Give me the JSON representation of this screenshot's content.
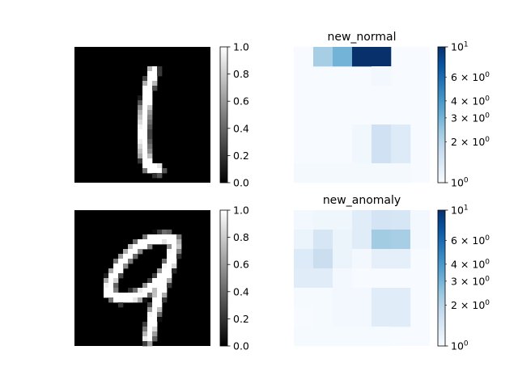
{
  "chart_data": [
    {
      "type": "heatmap",
      "title": "",
      "grid_size": 28,
      "colormap": "gray",
      "digit": "1",
      "colorbar": {
        "vmin": 0.0,
        "vmax": 1.0,
        "ticks": [
          "0.0",
          "0.2",
          "0.4",
          "0.6",
          "0.8",
          "1.0"
        ]
      }
    },
    {
      "type": "heatmap",
      "title": "new_normal",
      "grid_size": 7,
      "colormap": "Blues",
      "scale": "log",
      "colorbar": {
        "vmin": 1,
        "vmax": 10,
        "major_ticks": [
          {
            "base": "10",
            "exp": "0"
          },
          {
            "base": "10",
            "exp": "1"
          }
        ],
        "minor_ticks": [
          {
            "coef": "2",
            "exp": "0"
          },
          {
            "coef": "3",
            "exp": "0"
          },
          {
            "coef": "4",
            "exp": "0"
          },
          {
            "coef": "6",
            "exp": "0"
          }
        ]
      },
      "cells": [
        {
          "row": 0,
          "col": 1,
          "value": 2.2
        },
        {
          "row": 0,
          "col": 2,
          "value": 3.0
        },
        {
          "row": 0,
          "col": 3,
          "value": 10.0
        },
        {
          "row": 0,
          "col": 4,
          "value": 10.0
        },
        {
          "row": 1,
          "col": 4,
          "value": 1.06
        },
        {
          "row": 4,
          "col": 3,
          "value": 1.08
        },
        {
          "row": 4,
          "col": 4,
          "value": 1.6
        },
        {
          "row": 4,
          "col": 5,
          "value": 1.35
        },
        {
          "row": 5,
          "col": 3,
          "value": 1.08
        },
        {
          "row": 5,
          "col": 4,
          "value": 1.6
        },
        {
          "row": 5,
          "col": 5,
          "value": 1.35
        },
        {
          "row": 6,
          "col": 0,
          "value": 1.03
        },
        {
          "row": 6,
          "col": 1,
          "value": 1.03
        },
        {
          "row": 6,
          "col": 2,
          "value": 1.03
        },
        {
          "row": 6,
          "col": 3,
          "value": 1.03
        },
        {
          "row": 6,
          "col": 4,
          "value": 1.03
        },
        {
          "row": 6,
          "col": 5,
          "value": 1.03
        }
      ]
    },
    {
      "type": "heatmap",
      "title": "",
      "grid_size": 28,
      "colormap": "gray",
      "digit": "9",
      "colorbar": {
        "vmin": 0.0,
        "vmax": 1.0,
        "ticks": [
          "0.0",
          "0.2",
          "0.4",
          "0.6",
          "0.8",
          "1.0"
        ]
      }
    },
    {
      "type": "heatmap",
      "title": "new_anomaly",
      "grid_size": 7,
      "colormap": "Blues",
      "scale": "log",
      "colorbar": {
        "vmin": 1,
        "vmax": 10,
        "major_ticks": [
          {
            "base": "10",
            "exp": "0"
          },
          {
            "base": "10",
            "exp": "1"
          }
        ],
        "minor_ticks": [
          {
            "coef": "2",
            "exp": "0"
          },
          {
            "coef": "3",
            "exp": "0"
          },
          {
            "coef": "4",
            "exp": "0"
          },
          {
            "coef": "6",
            "exp": "0"
          }
        ]
      },
      "cells": [
        {
          "row": 0,
          "col": 0,
          "value": 1.05
        },
        {
          "row": 0,
          "col": 1,
          "value": 1.1
        },
        {
          "row": 0,
          "col": 2,
          "value": 1.1
        },
        {
          "row": 0,
          "col": 3,
          "value": 1.3
        },
        {
          "row": 0,
          "col": 4,
          "value": 1.5
        },
        {
          "row": 0,
          "col": 5,
          "value": 1.45
        },
        {
          "row": 0,
          "col": 6,
          "value": 1.05
        },
        {
          "row": 1,
          "col": 0,
          "value": 1.15
        },
        {
          "row": 1,
          "col": 1,
          "value": 1.45
        },
        {
          "row": 1,
          "col": 2,
          "value": 1.15
        },
        {
          "row": 1,
          "col": 3,
          "value": 1.3
        },
        {
          "row": 1,
          "col": 4,
          "value": 2.3
        },
        {
          "row": 1,
          "col": 5,
          "value": 2.2
        },
        {
          "row": 1,
          "col": 6,
          "value": 1.05
        },
        {
          "row": 2,
          "col": 0,
          "value": 1.35
        },
        {
          "row": 2,
          "col": 1,
          "value": 1.7
        },
        {
          "row": 2,
          "col": 2,
          "value": 1.15
        },
        {
          "row": 2,
          "col": 3,
          "value": 1.05
        },
        {
          "row": 2,
          "col": 4,
          "value": 1.25
        },
        {
          "row": 2,
          "col": 5,
          "value": 1.25
        },
        {
          "row": 3,
          "col": 0,
          "value": 1.3
        },
        {
          "row": 3,
          "col": 1,
          "value": 1.3
        },
        {
          "row": 3,
          "col": 2,
          "value": 1.05
        },
        {
          "row": 4,
          "col": 0,
          "value": 1.02
        },
        {
          "row": 4,
          "col": 1,
          "value": 1.02
        },
        {
          "row": 4,
          "col": 2,
          "value": 1.05
        },
        {
          "row": 4,
          "col": 3,
          "value": 1.05
        },
        {
          "row": 4,
          "col": 4,
          "value": 1.3
        },
        {
          "row": 4,
          "col": 5,
          "value": 1.3
        },
        {
          "row": 5,
          "col": 1,
          "value": 1.02
        },
        {
          "row": 5,
          "col": 2,
          "value": 1.05
        },
        {
          "row": 5,
          "col": 3,
          "value": 1.05
        },
        {
          "row": 5,
          "col": 4,
          "value": 1.3
        },
        {
          "row": 5,
          "col": 5,
          "value": 1.3
        },
        {
          "row": 6,
          "col": 0,
          "value": 1.02
        },
        {
          "row": 6,
          "col": 1,
          "value": 1.02
        },
        {
          "row": 6,
          "col": 2,
          "value": 1.02
        },
        {
          "row": 6,
          "col": 3,
          "value": 1.02
        },
        {
          "row": 6,
          "col": 4,
          "value": 1.02
        }
      ]
    }
  ]
}
